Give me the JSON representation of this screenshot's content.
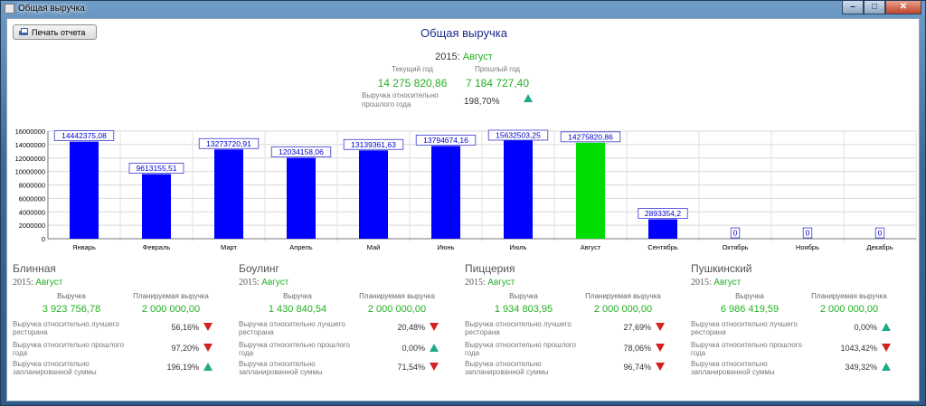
{
  "window": {
    "title": "Общая выручка",
    "min": "–",
    "max": "□",
    "close": "✕"
  },
  "toolbar": {
    "print_label": "Печать отчета"
  },
  "report": {
    "title": "Общая выручка"
  },
  "header": {
    "year": "2015:",
    "month": "Август",
    "current_label": "Текущий год",
    "previous_label": "Прошлый год",
    "current_value": "14 275 820,86",
    "previous_value": "7 184 727,40",
    "relative_label": "Выручка относительно прошлого года",
    "relative_value": "198,70%",
    "relative_trend": "up"
  },
  "chart_data": {
    "type": "bar",
    "categories": [
      "Январь",
      "Февраль",
      "Март",
      "Апрель",
      "Май",
      "Июнь",
      "Июль",
      "Август",
      "Сентябрь",
      "Октябрь",
      "Ноябрь",
      "Декабрь"
    ],
    "values": [
      14442375.08,
      9613155.51,
      13273720.91,
      12034158.06,
      13139361.63,
      13794674.16,
      15632503.25,
      14275820.86,
      2893354.2,
      0,
      0,
      0
    ],
    "data_labels": [
      "14442375,08",
      "9613155,51",
      "13273720,91",
      "12034158,06",
      "13139361,63",
      "13794674,16",
      "15632503,25",
      "14275820,86",
      "2893354,2",
      "0",
      "0",
      "0"
    ],
    "highlight_index": 7,
    "colors": {
      "bar": "#0000ff",
      "highlight": "#00dd00",
      "label": "#0000cc"
    },
    "yticks": [
      "0",
      "2000000",
      "4000000",
      "6000000",
      "8000000",
      "10000000",
      "12000000",
      "14000000",
      "16000000"
    ],
    "ylim": [
      0,
      16000000
    ],
    "grid": true
  },
  "sections": [
    {
      "name": "Блинная",
      "year": "2015:",
      "month": "Август",
      "revenue_label": "Выручка",
      "planned_label": "Планируемая выручка",
      "revenue": "3 923 756,78",
      "planned": "2 000 000,00",
      "rows": [
        {
          "label": "Выручка относительно лучшего ресторана",
          "value": "56,16%",
          "trend": "down"
        },
        {
          "label": "Выручка относительно прошлого года",
          "value": "97,20%",
          "trend": "down"
        },
        {
          "label": "Выручка относительно запланированной суммы",
          "value": "196,19%",
          "trend": "up"
        }
      ]
    },
    {
      "name": "Боулинг",
      "year": "2015:",
      "month": "Август",
      "revenue_label": "Выручка",
      "planned_label": "Планируемая выручка",
      "revenue": "1 430 840,54",
      "planned": "2 000 000,00",
      "rows": [
        {
          "label": "Выручка относительно лучшего ресторана",
          "value": "20,48%",
          "trend": "down"
        },
        {
          "label": "Выручка относительно прошлого года",
          "value": "0,00%",
          "trend": "up"
        },
        {
          "label": "Выручка относительно запланированной суммы",
          "value": "71,54%",
          "trend": "down"
        }
      ]
    },
    {
      "name": "Пиццерия",
      "year": "2015:",
      "month": "Август",
      "revenue_label": "Выручка",
      "planned_label": "Планируемая выручка",
      "revenue": "1 934 803,95",
      "planned": "2 000 000,00",
      "rows": [
        {
          "label": "Выручка относительно лучшего ресторана",
          "value": "27,69%",
          "trend": "down"
        },
        {
          "label": "Выручка относительно прошлого года",
          "value": "78,06%",
          "trend": "down"
        },
        {
          "label": "Выручка относительно запланированной суммы",
          "value": "96,74%",
          "trend": "down"
        }
      ]
    },
    {
      "name": "Пушкинский",
      "year": "2015:",
      "month": "Август",
      "revenue_label": "Выручка",
      "planned_label": "Планируемая выручка",
      "revenue": "6 986 419,59",
      "planned": "2 000 000,00",
      "rows": [
        {
          "label": "Выручка относительно лучшего ресторана",
          "value": "0,00%",
          "trend": "up"
        },
        {
          "label": "Выручка относительно прошлого года",
          "value": "1043,42%",
          "trend": "down"
        },
        {
          "label": "Выручка относительно запланированной суммы",
          "value": "349,32%",
          "trend": "up"
        }
      ]
    }
  ]
}
